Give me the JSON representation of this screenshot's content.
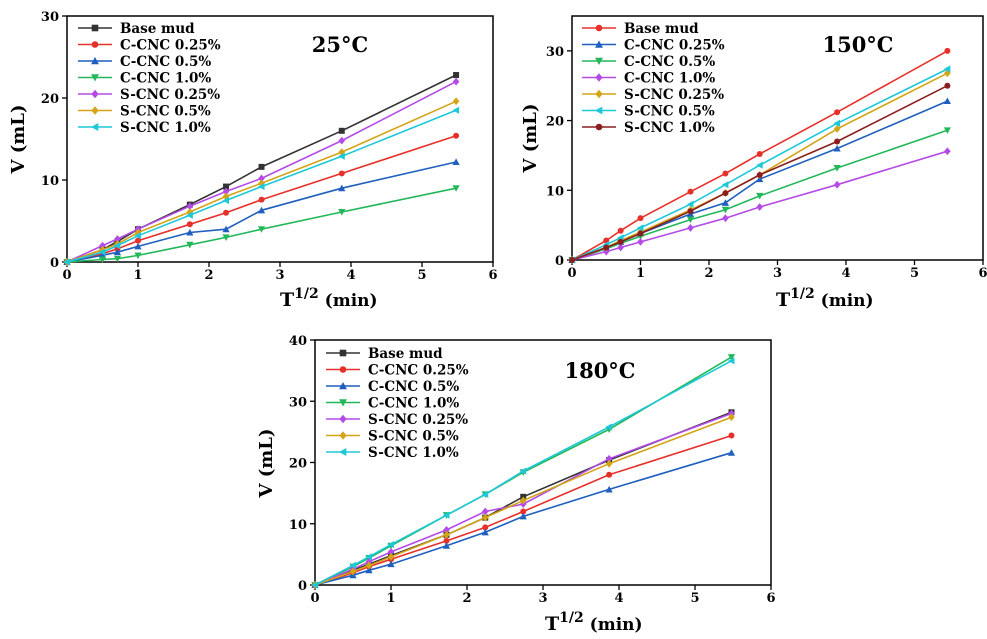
{
  "chart_data": [
    {
      "type": "line",
      "title": "25°C",
      "xlabel": "T",
      "xlabel_sup": "1/2",
      "xlabel_unit": "(min)",
      "ylabel": "V (mL)",
      "xlim": [
        0,
        6
      ],
      "ylim": [
        0,
        30
      ],
      "xticks": [
        0,
        1,
        2,
        3,
        4,
        5,
        6
      ],
      "yticks": [
        0,
        10,
        20,
        30
      ],
      "legend": "top-left",
      "x": [
        0,
        0.5,
        0.71,
        1,
        1.73,
        2.24,
        2.74,
        3.87,
        5.48
      ],
      "series": [
        {
          "name": "Base mud",
          "color": "#333333",
          "marker": "square",
          "values": [
            0,
            1.5,
            2.5,
            4.0,
            7.0,
            9.2,
            11.6,
            16.0,
            22.8
          ]
        },
        {
          "name": "C-CNC 0.25%",
          "color": "#e8302a",
          "marker": "circle",
          "values": [
            0,
            1.0,
            1.6,
            2.6,
            4.6,
            6.0,
            7.6,
            10.8,
            15.4
          ]
        },
        {
          "name": "C-CNC 0.5%",
          "color": "#1f5fbf",
          "marker": "triangle-up",
          "values": [
            0,
            0.8,
            1.2,
            1.9,
            3.6,
            4.0,
            6.3,
            9.0,
            12.2
          ]
        },
        {
          "name": "C-CNC 1.0%",
          "color": "#22b85a",
          "marker": "triangle-down",
          "values": [
            0,
            0.3,
            0.4,
            0.8,
            2.1,
            3.0,
            4.0,
            6.1,
            9.0
          ]
        },
        {
          "name": "S-CNC 0.25%",
          "color": "#b44be6",
          "marker": "diamond",
          "values": [
            0,
            2.0,
            2.8,
            4.0,
            6.8,
            8.6,
            10.2,
            14.8,
            22.0
          ]
        },
        {
          "name": "S-CNC 0.5%",
          "color": "#d4a416",
          "marker": "diamond",
          "values": [
            0,
            1.5,
            2.2,
            3.6,
            6.1,
            8.0,
            9.6,
            13.4,
            19.6
          ]
        },
        {
          "name": "S-CNC 1.0%",
          "color": "#1ec8d8",
          "marker": "triangle-left",
          "values": [
            0,
            1.2,
            2.0,
            3.2,
            5.7,
            7.5,
            9.2,
            12.9,
            18.5
          ]
        }
      ]
    },
    {
      "type": "line",
      "title": "150°C",
      "xlabel": "T",
      "xlabel_sup": "1/2",
      "xlabel_unit": "(min)",
      "ylabel": "V (mL)",
      "xlim": [
        0,
        6
      ],
      "ylim": [
        0,
        35
      ],
      "xticks": [
        0,
        1,
        2,
        3,
        4,
        5,
        6
      ],
      "yticks": [
        0,
        10,
        20,
        30
      ],
      "legend": "top-left",
      "x": [
        0,
        0.5,
        0.71,
        1,
        1.73,
        2.24,
        2.74,
        3.87,
        5.48
      ],
      "series": [
        {
          "name": "Base mud",
          "color": "#e8302a",
          "marker": "circle",
          "values": [
            0,
            2.8,
            4.2,
            6.0,
            9.8,
            12.4,
            15.2,
            21.2,
            30.0
          ]
        },
        {
          "name": "C-CNC 0.25%",
          "color": "#1f5fbf",
          "marker": "triangle-up",
          "values": [
            0,
            1.8,
            2.6,
            3.8,
            6.6,
            8.2,
            11.6,
            16.0,
            22.8
          ]
        },
        {
          "name": "C-CNC 0.5%",
          "color": "#22b85a",
          "marker": "triangle-down",
          "values": [
            0,
            1.6,
            2.4,
            3.4,
            5.8,
            7.2,
            9.2,
            13.2,
            18.6
          ]
        },
        {
          "name": "C-CNC 1.0%",
          "color": "#b44be6",
          "marker": "diamond",
          "values": [
            0,
            1.2,
            1.8,
            2.6,
            4.6,
            6.0,
            7.6,
            10.8,
            15.6
          ]
        },
        {
          "name": "S-CNC 0.25%",
          "color": "#d4a416",
          "marker": "diamond",
          "values": [
            0,
            1.8,
            2.8,
            4.0,
            7.2,
            9.6,
            12.2,
            18.8,
            26.8
          ]
        },
        {
          "name": "S-CNC 0.5%",
          "color": "#1ec8d8",
          "marker": "triangle-left",
          "values": [
            0,
            2.2,
            3.2,
            4.6,
            8.0,
            10.8,
            13.6,
            19.6,
            27.4
          ]
        },
        {
          "name": "S-CNC 1.0%",
          "color": "#8b1e1e",
          "marker": "circle",
          "values": [
            0,
            1.8,
            2.6,
            3.8,
            7.0,
            9.6,
            12.2,
            17.0,
            25.0
          ]
        }
      ]
    },
    {
      "type": "line",
      "title": "180°C",
      "xlabel": "T",
      "xlabel_sup": "1/2",
      "xlabel_unit": "(min)",
      "ylabel": "V (mL)",
      "xlim": [
        0,
        6
      ],
      "ylim": [
        0,
        40
      ],
      "xticks": [
        0,
        1,
        2,
        3,
        4,
        5,
        6
      ],
      "yticks": [
        0,
        10,
        20,
        30,
        40
      ],
      "legend": "top-left",
      "x": [
        0,
        0.5,
        0.71,
        1,
        1.73,
        2.24,
        2.74,
        3.87,
        5.48
      ],
      "series": [
        {
          "name": "Base mud",
          "color": "#333333",
          "marker": "square",
          "values": [
            0,
            2.4,
            3.4,
            4.8,
            8.2,
            11.0,
            14.4,
            20.4,
            28.2
          ]
        },
        {
          "name": "C-CNC 0.25%",
          "color": "#e8302a",
          "marker": "circle",
          "values": [
            0,
            2.0,
            3.0,
            4.2,
            7.2,
            9.4,
            12.0,
            18.0,
            24.4
          ]
        },
        {
          "name": "C-CNC 0.5%",
          "color": "#1f5fbf",
          "marker": "triangle-up",
          "values": [
            0,
            1.6,
            2.4,
            3.4,
            6.4,
            8.6,
            11.2,
            15.6,
            21.6
          ]
        },
        {
          "name": "C-CNC 1.0%",
          "color": "#22b85a",
          "marker": "triangle-down",
          "values": [
            0,
            3.0,
            4.4,
            6.4,
            11.4,
            14.8,
            18.4,
            25.4,
            37.2
          ]
        },
        {
          "name": "S-CNC 0.25%",
          "color": "#b44be6",
          "marker": "diamond",
          "values": [
            0,
            2.6,
            3.8,
            5.4,
            9.0,
            12.0,
            13.2,
            20.6,
            28.0
          ]
        },
        {
          "name": "S-CNC 0.5%",
          "color": "#d4a416",
          "marker": "diamond",
          "values": [
            0,
            2.2,
            3.2,
            4.6,
            8.2,
            11.0,
            13.8,
            19.8,
            27.4
          ]
        },
        {
          "name": "S-CNC 1.0%",
          "color": "#1ec8d8",
          "marker": "triangle-left",
          "values": [
            0,
            3.2,
            4.6,
            6.6,
            11.4,
            14.8,
            18.6,
            25.8,
            36.6
          ]
        }
      ]
    }
  ]
}
